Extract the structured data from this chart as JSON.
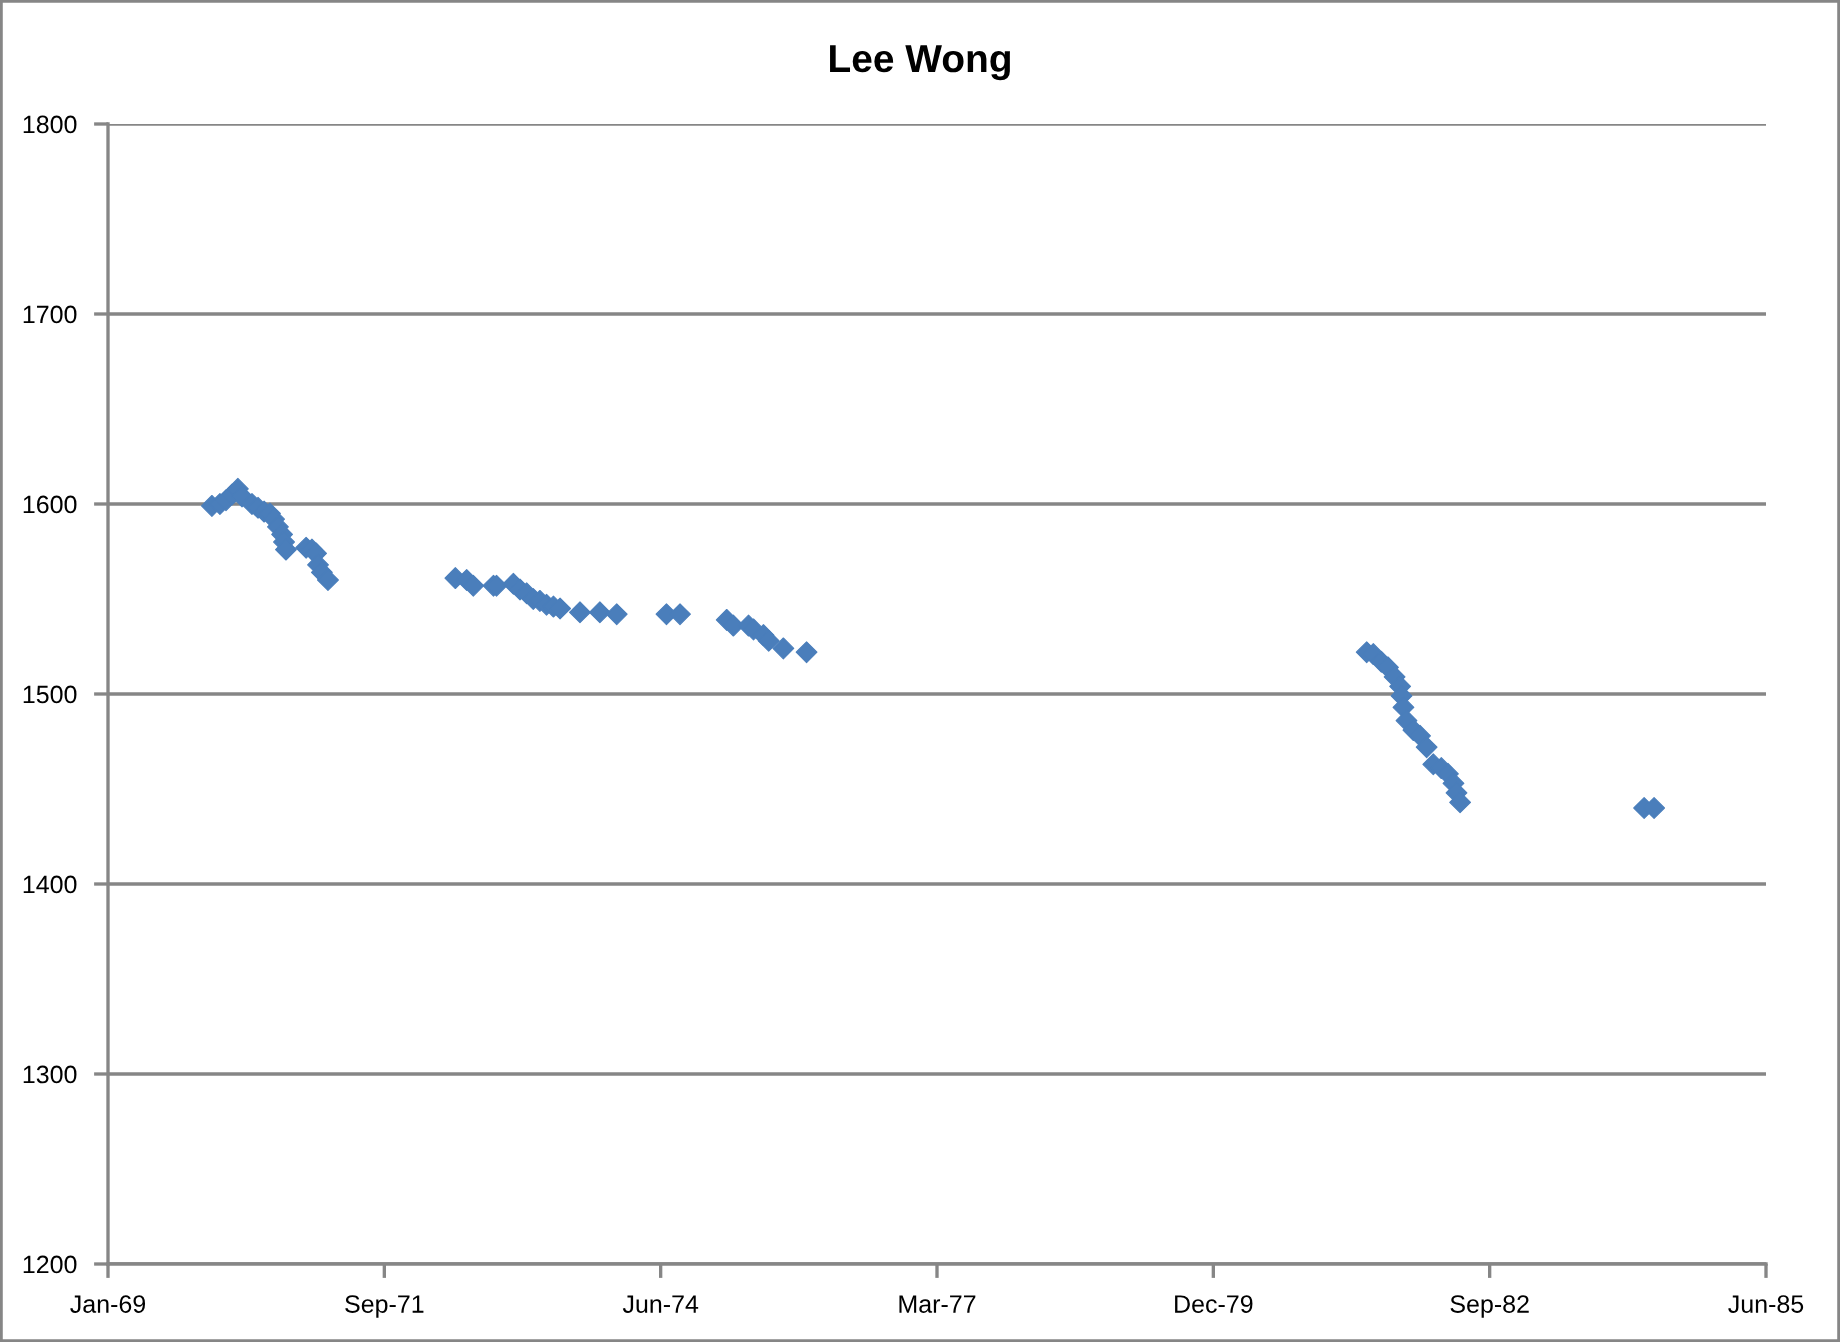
{
  "chart_data": {
    "type": "scatter",
    "title": "Lee Wong",
    "x": [
      "1970-01-12",
      "1970-02-10",
      "1970-03-04",
      "1970-03-26",
      "1970-04-16",
      "1970-05-01",
      "1970-06-06",
      "1970-06-28",
      "1970-07-20",
      "1970-08-10",
      "1970-08-25",
      "1970-09-08",
      "1970-09-23",
      "1970-09-30",
      "1970-10-07",
      "1970-12-19",
      "1971-01-09",
      "1971-01-24",
      "1971-01-31",
      "1971-02-14",
      "1971-03-08",
      "1972-06-11",
      "1972-07-22",
      "1972-08-15",
      "1972-10-27",
      "1972-11-07",
      "1973-01-07",
      "1973-01-31",
      "1973-02-24",
      "1973-03-20",
      "1973-04-13",
      "1973-05-07",
      "1973-06-01",
      "1973-06-25",
      "1973-09-05",
      "1973-11-16",
      "1974-01-16",
      "1974-07-15",
      "1974-09-02",
      "1975-02-18",
      "1975-03-14",
      "1975-05-08",
      "1975-05-26",
      "1975-07-01",
      "1975-07-20",
      "1975-09-11",
      "1975-12-04",
      "1981-06-22",
      "1981-07-16",
      "1981-08-14",
      "1981-09-07",
      "1981-10-01",
      "1981-10-21",
      "1981-10-26",
      "1981-11-02",
      "1981-11-13",
      "1981-12-08",
      "1982-01-01",
      "1982-01-25",
      "1982-02-18",
      "1982-03-19",
      "1982-04-12",
      "1982-05-02",
      "1982-05-13",
      "1982-05-26",
      "1984-03-22",
      "1984-04-27"
    ],
    "values": [
      1599,
      1600,
      1602,
      1605,
      1608,
      1604,
      1600,
      1598,
      1596,
      1595,
      1592,
      1588,
      1584,
      1580,
      1576,
      1577,
      1576,
      1574,
      1568,
      1564,
      1560,
      1561,
      1560,
      1557,
      1557,
      1557,
      1558,
      1555,
      1553,
      1550,
      1549,
      1547,
      1546,
      1545,
      1543,
      1543,
      1542,
      1542,
      1542,
      1539,
      1536,
      1536,
      1534,
      1531,
      1528,
      1524,
      1522,
      1522,
      1521,
      1517,
      1514,
      1509,
      1504,
      1499,
      1493,
      1486,
      1481,
      1478,
      1472,
      1463,
      1461,
      1458,
      1453,
      1448,
      1443,
      1440,
      1440
    ],
    "color": "#4a7ebb",
    "marker": "diamond",
    "xlim": [
      "1969-01-01",
      "1985-06-06"
    ],
    "xticks": [
      {
        "value": "1969-01-01",
        "label": "Jan-69"
      },
      {
        "value": "1971-09-28",
        "label": "Sep-71"
      },
      {
        "value": "1974-06-24",
        "label": "Jun-74"
      },
      {
        "value": "1977-03-20",
        "label": "Mar-77"
      },
      {
        "value": "1979-12-15",
        "label": "Dec-79"
      },
      {
        "value": "1982-09-10",
        "label": "Sep-82"
      },
      {
        "value": "1985-06-06",
        "label": "Jun-85"
      }
    ],
    "ylim": [
      1200,
      1800
    ],
    "yticks": [
      1200,
      1300,
      1400,
      1500,
      1600,
      1700,
      1800
    ],
    "grid": "y"
  }
}
